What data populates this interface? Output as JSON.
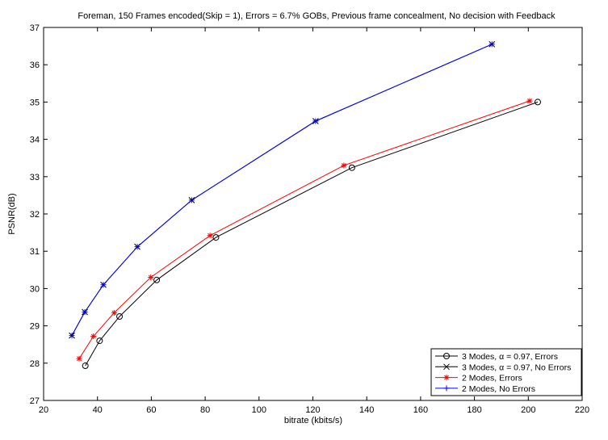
{
  "chart_data": {
    "type": "line",
    "title": "Foreman, 150 Frames encoded(Skip = 1), Errors = 6.7% GOBs, Previous frame concealment, No decision with Feedback",
    "xlabel": "bitrate (kbits/s)",
    "ylabel": "PSNR(dB)",
    "xlim": [
      20,
      220
    ],
    "ylim": [
      27,
      37
    ],
    "xticks": [
      20,
      40,
      60,
      80,
      100,
      120,
      140,
      160,
      180,
      200,
      220
    ],
    "yticks": [
      27,
      28,
      29,
      30,
      31,
      32,
      33,
      34,
      35,
      36,
      37
    ],
    "grid": false,
    "legend_position": "bottom-right",
    "series": [
      {
        "name": "3 Modes, α = 0.97, Errors",
        "color": "#000000",
        "marker": "circle",
        "points": [
          [
            35.5,
            27.93
          ],
          [
            40.8,
            28.6
          ],
          [
            48.2,
            29.25
          ],
          [
            62,
            30.23
          ],
          [
            84,
            31.37
          ],
          [
            134.5,
            33.24
          ],
          [
            203.5,
            35.0
          ]
        ]
      },
      {
        "name": "3 Modes, α = 0.97, No Errors",
        "color": "#000000",
        "marker": "x",
        "points": [
          [
            30.5,
            28.74
          ],
          [
            35.3,
            29.37
          ],
          [
            42.2,
            30.1
          ],
          [
            54.8,
            31.12
          ],
          [
            75,
            32.37
          ],
          [
            121,
            34.49
          ],
          [
            186.5,
            36.55
          ]
        ]
      },
      {
        "name": "2 Modes, Errors",
        "color": "#ff0000",
        "marker": "star",
        "points": [
          [
            33.2,
            28.12
          ],
          [
            38.5,
            28.72
          ],
          [
            46.2,
            29.35
          ],
          [
            59.8,
            30.3
          ],
          [
            81.8,
            31.42
          ],
          [
            131.5,
            33.3
          ],
          [
            200.5,
            35.03
          ]
        ]
      },
      {
        "name": "2 Modes, No Errors",
        "color": "#0000ff",
        "marker": "plus",
        "points": [
          [
            30.5,
            28.74
          ],
          [
            35.3,
            29.37
          ],
          [
            42.2,
            30.1
          ],
          [
            54.8,
            31.12
          ],
          [
            75,
            32.37
          ],
          [
            121,
            34.49
          ],
          [
            186.5,
            36.55
          ]
        ]
      }
    ]
  }
}
